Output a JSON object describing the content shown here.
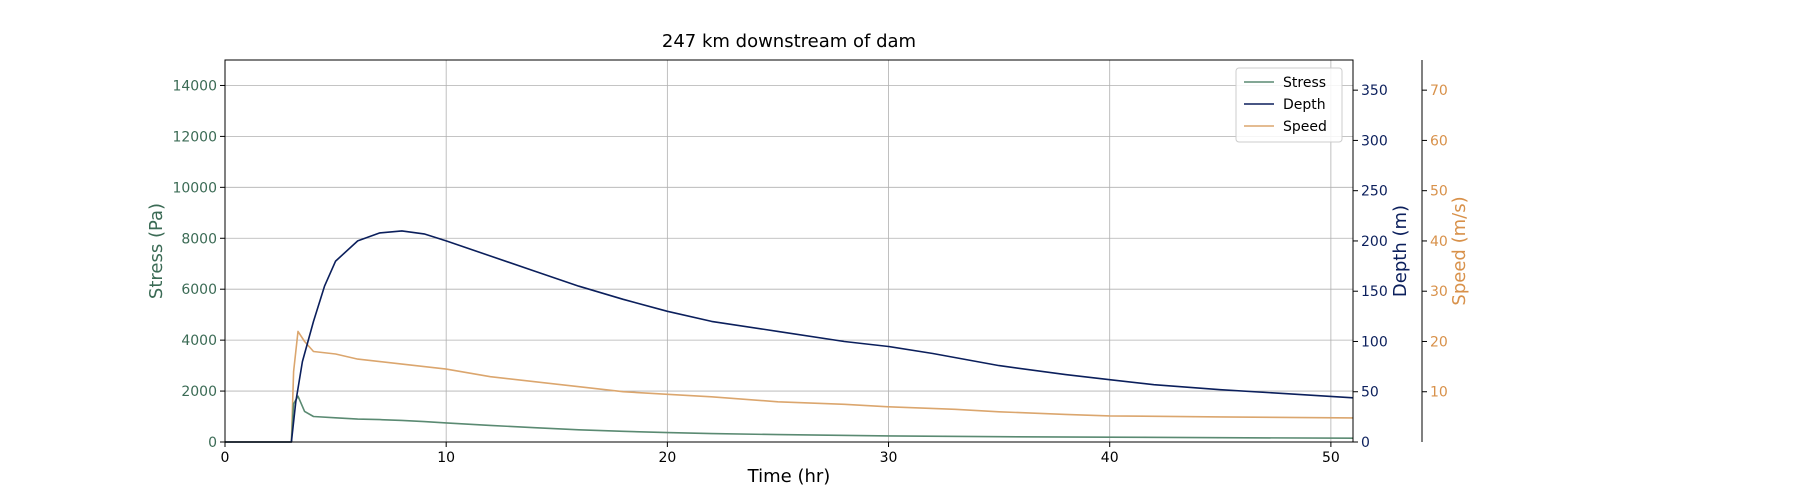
{
  "chart_data": {
    "type": "line",
    "title": "247 km downstream of dam",
    "xlabel": "Time (hr)",
    "xlim": [
      0,
      51
    ],
    "xticks": [
      0,
      10,
      20,
      30,
      40,
      50
    ],
    "grid": true,
    "legend_position": "top-right",
    "axes": [
      {
        "id": "stress",
        "label": "Stress (Pa)",
        "ylim": [
          0,
          15000
        ],
        "ticks": [
          0,
          2000,
          4000,
          6000,
          8000,
          10000,
          12000,
          14000
        ],
        "color": "#3b6b55",
        "side": "left"
      },
      {
        "id": "depth",
        "label": "Depth (m)",
        "ylim": [
          0,
          380
        ],
        "ticks": [
          0,
          50,
          100,
          150,
          200,
          250,
          300,
          350
        ],
        "color": "#0b1f5c",
        "side": "right"
      },
      {
        "id": "speed",
        "label": "Speed (m/s)",
        "ylim": [
          0,
          76
        ],
        "ticks": [
          10,
          20,
          30,
          40,
          50,
          60,
          70
        ],
        "color": "#d8914a",
        "side": "right-outer"
      }
    ],
    "series": [
      {
        "name": "Stress",
        "axis": "stress",
        "color": "#5a8a72",
        "x": [
          0,
          3.0,
          3.1,
          3.3,
          3.6,
          4,
          5,
          6,
          7,
          8,
          9,
          10,
          12,
          14,
          16,
          18,
          20,
          22,
          25,
          30,
          35,
          40,
          45,
          51
        ],
        "y": [
          0,
          0,
          1500,
          1800,
          1200,
          1000,
          950,
          900,
          880,
          850,
          800,
          750,
          650,
          560,
          480,
          420,
          370,
          330,
          290,
          240,
          210,
          190,
          170,
          150
        ]
      },
      {
        "name": "Depth",
        "axis": "depth",
        "color": "#0b1f5c",
        "x": [
          0,
          3.0,
          3.2,
          3.5,
          4,
          4.5,
          5,
          6,
          7,
          8,
          9,
          10,
          12,
          14,
          16,
          18,
          20,
          22,
          25,
          28,
          30,
          32,
          35,
          38,
          40,
          42,
          45,
          48,
          51
        ],
        "y": [
          0,
          0,
          40,
          80,
          120,
          155,
          180,
          200,
          208,
          210,
          207,
          200,
          185,
          170,
          155,
          142,
          130,
          120,
          110,
          100,
          95,
          88,
          76,
          67,
          62,
          57,
          52,
          48,
          44
        ]
      },
      {
        "name": "Speed",
        "axis": "speed",
        "color": "#dba66e",
        "x": [
          0,
          3.0,
          3.1,
          3.3,
          3.6,
          4,
          5,
          6,
          7,
          8,
          9,
          10,
          12,
          14,
          16,
          18,
          20,
          22,
          25,
          28,
          30,
          33,
          35,
          38,
          40,
          45,
          51
        ],
        "y": [
          0,
          0,
          14,
          22,
          20,
          18,
          17.5,
          16.5,
          16,
          15.5,
          15,
          14.5,
          13,
          12,
          11,
          10,
          9.5,
          9,
          8,
          7.5,
          7,
          6.5,
          6,
          5.5,
          5.2,
          5,
          4.8
        ]
      }
    ]
  }
}
